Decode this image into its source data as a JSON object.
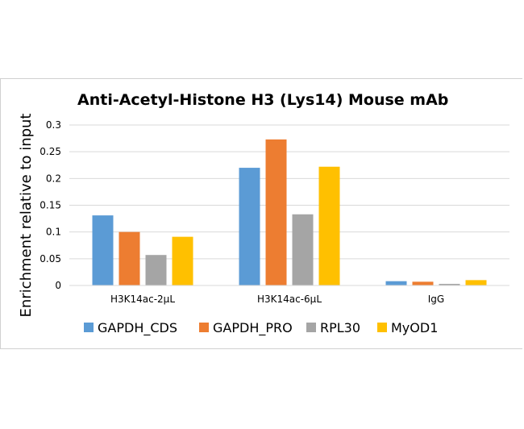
{
  "chart_data": {
    "type": "bar",
    "title": "Anti-Acetyl-Histone H3 (Lys14) Mouse mAb",
    "xlabel": "",
    "ylabel": "Enrichment relative to input",
    "ylim": [
      0,
      0.3
    ],
    "yticks": [
      "0",
      "0.05",
      "0.1",
      "0.15",
      "0.2",
      "0.25",
      "0.3"
    ],
    "ytick_values": [
      0,
      0.05,
      0.1,
      0.15,
      0.2,
      0.25,
      0.3
    ],
    "grid": true,
    "legend_position": "bottom",
    "categories": [
      "H3K14ac-2μL",
      "H3K14ac-6μL",
      "IgG"
    ],
    "series": [
      {
        "name": "GAPDH_CDS",
        "color": "#5b9bd5",
        "values": [
          0.131,
          0.22,
          0.008
        ]
      },
      {
        "name": "GAPDH_PRO",
        "color": "#ed7d31",
        "values": [
          0.1,
          0.273,
          0.007
        ]
      },
      {
        "name": "RPL30",
        "color": "#a5a5a5",
        "values": [
          0.057,
          0.133,
          0.003
        ]
      },
      {
        "name": "MyOD1",
        "color": "#ffc000",
        "values": [
          0.091,
          0.222,
          0.01
        ]
      }
    ]
  }
}
